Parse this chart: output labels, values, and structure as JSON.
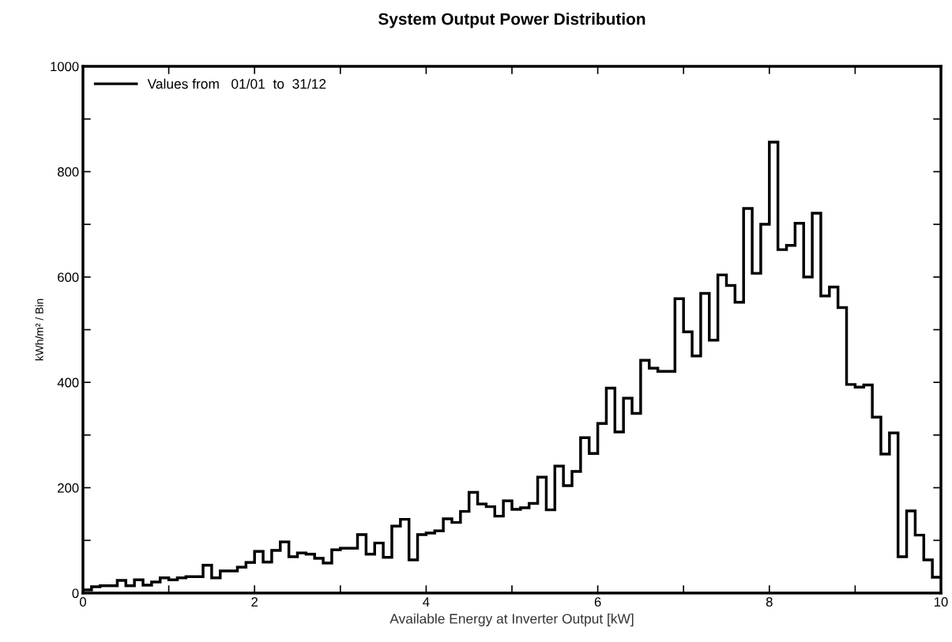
{
  "chart_data": {
    "type": "histogram",
    "title": "System Output Power Distribution",
    "xlabel": "Available Energy at Inverter Output [kW]",
    "ylabel": "kWh/m² / Bin",
    "bins": [
      0.0,
      0.1,
      0.2,
      0.3,
      0.4,
      0.5,
      0.6,
      0.7,
      0.8,
      0.9,
      1.0,
      1.1,
      1.2,
      1.3,
      1.4,
      1.5,
      1.6,
      1.7,
      1.8,
      1.9,
      2.0,
      2.1,
      2.2,
      2.3,
      2.4,
      2.5,
      2.6,
      2.7,
      2.8,
      2.9,
      3.0,
      3.1,
      3.2,
      3.3,
      3.4,
      3.5,
      3.6,
      3.7,
      3.8,
      3.9,
      4.0,
      4.1,
      4.2,
      4.3,
      4.4,
      4.5,
      4.6,
      4.7,
      4.8,
      4.9,
      5.0,
      5.1,
      5.2,
      5.3,
      5.4,
      5.5,
      5.6,
      5.7,
      5.8,
      5.9,
      6.0,
      6.1,
      6.2,
      6.3,
      6.4,
      6.5,
      6.6,
      6.7,
      6.8,
      6.9,
      7.0,
      7.1,
      7.2,
      7.3,
      7.4,
      7.5,
      7.6,
      7.7,
      7.8,
      7.9,
      8.0,
      8.1,
      8.2,
      8.3,
      8.4,
      8.5,
      8.6,
      8.7,
      8.8,
      8.9,
      9.0,
      9.1,
      9.2,
      9.3,
      9.4,
      9.5,
      9.6,
      9.7,
      9.8,
      9.9,
      10.0
    ],
    "series": [
      {
        "name": "Values from   01/01  to  31/12",
        "color": "#000000",
        "values": [
          6,
          12,
          14,
          14,
          24,
          14,
          25,
          15,
          21,
          29,
          25,
          29,
          31,
          31,
          53,
          29,
          42,
          42,
          49,
          58,
          79,
          59,
          81,
          97,
          69,
          76,
          74,
          66,
          57,
          82,
          85,
          85,
          111,
          74,
          95,
          68,
          127,
          140,
          63,
          111,
          114,
          118,
          141,
          134,
          155,
          191,
          169,
          164,
          146,
          175,
          159,
          162,
          170,
          220,
          158,
          241,
          204,
          231,
          295,
          265,
          322,
          389,
          306,
          370,
          341,
          442,
          427,
          421,
          421,
          559,
          496,
          450,
          569,
          480,
          604,
          584,
          552,
          730,
          607,
          700,
          856,
          652,
          660,
          702,
          600,
          721,
          564,
          581,
          542,
          396,
          391,
          395,
          334,
          264,
          304,
          69,
          156,
          110,
          63,
          30
        ]
      }
    ],
    "xlim": [
      0,
      10
    ],
    "ylim": [
      0,
      1000
    ],
    "xticks": [
      0,
      {
        "value": 1,
        "label": null
      },
      2,
      {
        "value": 3,
        "label": null
      },
      4,
      {
        "value": 5,
        "label": null
      },
      6,
      {
        "value": 7,
        "label": null
      },
      8,
      {
        "value": 9,
        "label": null
      },
      10
    ],
    "yticks": [
      0,
      {
        "value": 100,
        "label": null
      },
      200,
      {
        "value": 300,
        "label": null
      },
      400,
      {
        "value": 500,
        "label": null
      },
      600,
      {
        "value": 700,
        "label": null
      },
      800,
      {
        "value": 900,
        "label": null
      },
      1000
    ],
    "legend": "top left",
    "grid": false
  }
}
